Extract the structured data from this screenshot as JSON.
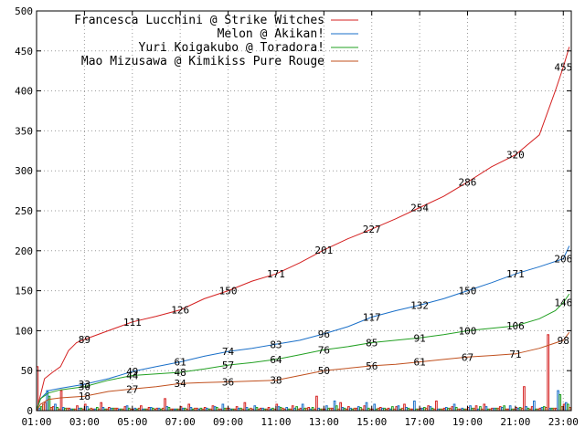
{
  "chart_data": {
    "type": "line",
    "title": "",
    "xlabel": "",
    "ylabel": "",
    "xlim": [
      "01:00",
      "23:20"
    ],
    "ylim": [
      0,
      500
    ],
    "x_tick_labels": [
      "01:00",
      "03:00",
      "05:00",
      "07:00",
      "09:00",
      "11:00",
      "13:00",
      "15:00",
      "17:00",
      "19:00",
      "21:00",
      "23:00"
    ],
    "y_tick_labels": [
      "0",
      "50",
      "100",
      "150",
      "200",
      "250",
      "300",
      "350",
      "400",
      "450",
      "500"
    ],
    "grid": true,
    "legend_position": "top-left",
    "series": [
      {
        "name": "Francesca Lucchini @ Strike Witches",
        "color": "#d42020",
        "cumulative": [
          [
            "01:00",
            0
          ],
          [
            "01:10",
            20
          ],
          [
            "01:20",
            40
          ],
          [
            "01:40",
            48
          ],
          [
            "02:00",
            55
          ],
          [
            "02:20",
            75
          ],
          [
            "02:40",
            85
          ],
          [
            "03:00",
            89
          ],
          [
            "04:00",
            100
          ],
          [
            "05:00",
            111
          ],
          [
            "06:00",
            118
          ],
          [
            "07:00",
            126
          ],
          [
            "08:00",
            140
          ],
          [
            "09:00",
            150
          ],
          [
            "10:00",
            162
          ],
          [
            "11:00",
            171
          ],
          [
            "12:00",
            185
          ],
          [
            "13:00",
            201
          ],
          [
            "14:00",
            215
          ],
          [
            "15:00",
            227
          ],
          [
            "16:00",
            240
          ],
          [
            "17:00",
            254
          ],
          [
            "18:00",
            268
          ],
          [
            "19:00",
            286
          ],
          [
            "20:00",
            305
          ],
          [
            "21:00",
            320
          ],
          [
            "22:00",
            345
          ],
          [
            "22:40",
            400
          ],
          [
            "23:00",
            430
          ],
          [
            "23:15",
            455
          ]
        ],
        "labels": [
          {
            "x": "03:00",
            "v": "89"
          },
          {
            "x": "05:00",
            "v": "111"
          },
          {
            "x": "07:00",
            "v": "126"
          },
          {
            "x": "09:00",
            "v": "150"
          },
          {
            "x": "11:00",
            "v": "171"
          },
          {
            "x": "13:00",
            "v": "201"
          },
          {
            "x": "15:00",
            "v": "227"
          },
          {
            "x": "17:00",
            "v": "254"
          },
          {
            "x": "19:00",
            "v": "286"
          },
          {
            "x": "21:00",
            "v": "320"
          },
          {
            "x": "23:00",
            "v": "455"
          }
        ],
        "bars": [
          55,
          10,
          5,
          25,
          3,
          6,
          8,
          2,
          10,
          4,
          3,
          5,
          2,
          6,
          4,
          3,
          15,
          2,
          5,
          8,
          3,
          4,
          6,
          2,
          3,
          5,
          10,
          2,
          3,
          4,
          8,
          2,
          6,
          3,
          4,
          18,
          2,
          3,
          10,
          5,
          3,
          6,
          2,
          4,
          3,
          5,
          8,
          2,
          3,
          6,
          12,
          3,
          5,
          2,
          4,
          6,
          8,
          3,
          5,
          2,
          4,
          30,
          5,
          3,
          95,
          3,
          8
        ]
      },
      {
        "name": "Melon @ Akikan!",
        "color": "#1a6fc8",
        "cumulative": [
          [
            "01:00",
            0
          ],
          [
            "01:10",
            15
          ],
          [
            "01:30",
            25
          ],
          [
            "02:00",
            28
          ],
          [
            "03:00",
            33
          ],
          [
            "04:00",
            40
          ],
          [
            "05:00",
            49
          ],
          [
            "06:00",
            55
          ],
          [
            "07:00",
            61
          ],
          [
            "08:00",
            68
          ],
          [
            "09:00",
            74
          ],
          [
            "10:00",
            78
          ],
          [
            "11:00",
            83
          ],
          [
            "12:00",
            88
          ],
          [
            "13:00",
            96
          ],
          [
            "14:00",
            105
          ],
          [
            "15:00",
            117
          ],
          [
            "16:00",
            125
          ],
          [
            "17:00",
            132
          ],
          [
            "18:00",
            140
          ],
          [
            "19:00",
            150
          ],
          [
            "20:00",
            160
          ],
          [
            "21:00",
            171
          ],
          [
            "22:00",
            180
          ],
          [
            "23:00",
            190
          ],
          [
            "23:15",
            206
          ]
        ],
        "labels": [
          {
            "x": "03:00",
            "v": "33"
          },
          {
            "x": "05:00",
            "v": "49"
          },
          {
            "x": "07:00",
            "v": "61"
          },
          {
            "x": "09:00",
            "v": "74"
          },
          {
            "x": "11:00",
            "v": "83"
          },
          {
            "x": "13:00",
            "v": "96"
          },
          {
            "x": "15:00",
            "v": "117"
          },
          {
            "x": "17:00",
            "v": "132"
          },
          {
            "x": "19:00",
            "v": "150"
          },
          {
            "x": "21:00",
            "v": "171"
          },
          {
            "x": "23:00",
            "v": "206"
          }
        ],
        "bars": [
          3,
          25,
          8,
          4,
          2,
          3,
          5,
          2,
          4,
          3,
          2,
          6,
          3,
          2,
          4,
          3,
          5,
          2,
          3,
          4,
          2,
          3,
          5,
          8,
          2,
          3,
          4,
          6,
          3,
          2,
          5,
          4,
          3,
          8,
          2,
          3,
          6,
          12,
          4,
          3,
          5,
          10,
          8,
          3,
          2,
          6,
          4,
          12,
          3,
          5,
          2,
          4,
          8,
          3,
          6,
          2,
          5,
          3,
          4,
          6,
          3,
          5,
          12,
          4,
          3,
          25,
          10
        ]
      },
      {
        "name": "Yuri Koigakubo @ Toradora!",
        "color": "#22a022",
        "cumulative": [
          [
            "01:00",
            0
          ],
          [
            "01:10",
            15
          ],
          [
            "01:30",
            22
          ],
          [
            "02:00",
            26
          ],
          [
            "03:00",
            30
          ],
          [
            "04:00",
            38
          ],
          [
            "05:00",
            44
          ],
          [
            "06:00",
            46
          ],
          [
            "07:00",
            48
          ],
          [
            "08:00",
            52
          ],
          [
            "09:00",
            57
          ],
          [
            "10:00",
            60
          ],
          [
            "11:00",
            64
          ],
          [
            "12:00",
            70
          ],
          [
            "13:00",
            76
          ],
          [
            "14:00",
            80
          ],
          [
            "15:00",
            85
          ],
          [
            "16:00",
            88
          ],
          [
            "17:00",
            91
          ],
          [
            "18:00",
            95
          ],
          [
            "19:00",
            100
          ],
          [
            "20:00",
            103
          ],
          [
            "21:00",
            106
          ],
          [
            "22:00",
            115
          ],
          [
            "22:40",
            125
          ],
          [
            "23:00",
            135
          ],
          [
            "23:15",
            146
          ]
        ],
        "labels": [
          {
            "x": "03:00",
            "v": "30"
          },
          {
            "x": "05:00",
            "v": "44"
          },
          {
            "x": "07:00",
            "v": "48"
          },
          {
            "x": "09:00",
            "v": "57"
          },
          {
            "x": "11:00",
            "v": "64"
          },
          {
            "x": "13:00",
            "v": "76"
          },
          {
            "x": "15:00",
            "v": "85"
          },
          {
            "x": "17:00",
            "v": "91"
          },
          {
            "x": "19:00",
            "v": "100"
          },
          {
            "x": "21:00",
            "v": "106"
          },
          {
            "x": "23:00",
            "v": "146"
          }
        ],
        "bars": [
          5,
          18,
          4,
          3,
          2,
          3,
          2,
          4,
          2,
          3,
          2,
          3,
          2,
          2,
          3,
          2,
          4,
          2,
          3,
          2,
          3,
          2,
          4,
          3,
          2,
          3,
          2,
          4,
          2,
          3,
          4,
          2,
          5,
          3,
          4,
          2,
          3,
          6,
          3,
          2,
          4,
          3,
          2,
          3,
          5,
          2,
          3,
          2,
          4,
          3,
          2,
          3,
          4,
          2,
          3,
          5,
          2,
          3,
          6,
          2,
          4,
          3,
          2,
          5,
          3,
          20,
          8
        ]
      },
      {
        "name": "Mao Mizusawa @ Kimikiss Pure Rouge",
        "color": "#c0501e",
        "cumulative": [
          [
            "01:00",
            0
          ],
          [
            "01:10",
            8
          ],
          [
            "01:30",
            14
          ],
          [
            "02:00",
            16
          ],
          [
            "03:00",
            18
          ],
          [
            "04:00",
            24
          ],
          [
            "05:00",
            27
          ],
          [
            "06:00",
            30
          ],
          [
            "07:00",
            34
          ],
          [
            "08:00",
            35
          ],
          [
            "09:00",
            36
          ],
          [
            "10:00",
            37
          ],
          [
            "11:00",
            38
          ],
          [
            "12:00",
            44
          ],
          [
            "13:00",
            50
          ],
          [
            "14:00",
            53
          ],
          [
            "15:00",
            56
          ],
          [
            "16:00",
            58
          ],
          [
            "17:00",
            61
          ],
          [
            "18:00",
            64
          ],
          [
            "19:00",
            67
          ],
          [
            "20:00",
            69
          ],
          [
            "21:00",
            71
          ],
          [
            "22:00",
            78
          ],
          [
            "23:00",
            88
          ],
          [
            "23:15",
            98
          ]
        ],
        "labels": [
          {
            "x": "03:00",
            "v": "18"
          },
          {
            "x": "05:00",
            "v": "27"
          },
          {
            "x": "07:00",
            "v": "34"
          },
          {
            "x": "09:00",
            "v": "36"
          },
          {
            "x": "11:00",
            "v": "38"
          },
          {
            "x": "13:00",
            "v": "50"
          },
          {
            "x": "15:00",
            "v": "56"
          },
          {
            "x": "17:00",
            "v": "61"
          },
          {
            "x": "19:00",
            "v": "67"
          },
          {
            "x": "21:00",
            "v": "71"
          },
          {
            "x": "23:00",
            "v": "98"
          }
        ],
        "bars": [
          8,
          4,
          2,
          3,
          2,
          2,
          3,
          2,
          2,
          3,
          2,
          2,
          3,
          2,
          2,
          3,
          2,
          2,
          2,
          3,
          2,
          2,
          2,
          3,
          2,
          2,
          3,
          2,
          2,
          2,
          3,
          2,
          2,
          3,
          2,
          2,
          3,
          2,
          2,
          3,
          2,
          2,
          3,
          2,
          2,
          3,
          2,
          2,
          3,
          2,
          2,
          3,
          2,
          2,
          3,
          2,
          2,
          3,
          2,
          2,
          3,
          2,
          2,
          4,
          3,
          5,
          4
        ]
      }
    ]
  }
}
